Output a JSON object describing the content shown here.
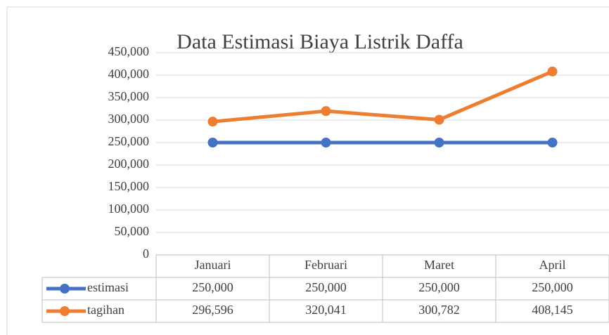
{
  "chart_data": {
    "type": "line",
    "title": "Data Estimasi Biaya Listrik Daffa",
    "categories": [
      "Januari",
      "Februari",
      "Maret",
      "April"
    ],
    "series": [
      {
        "name": "estimasi",
        "color": "#4472c4",
        "values": [
          250000,
          250000,
          250000,
          250000
        ],
        "value_labels": [
          "250,000",
          "250,000",
          "250,000",
          "250,000"
        ]
      },
      {
        "name": "tagihan",
        "color": "#ed7d31",
        "values": [
          296596,
          320041,
          300782,
          408145
        ],
        "value_labels": [
          "296,596",
          "320,041",
          "300,782",
          "408,145"
        ]
      }
    ],
    "ylim": [
      0,
      450000
    ],
    "yticks": [
      0,
      {
        "value": 50000,
        "label": "50,000"
      },
      {
        "value": 100000,
        "label": "100,000"
      },
      {
        "value": 150000,
        "label": "150,000"
      },
      {
        "value": 200000,
        "label": "200,000"
      },
      {
        "value": 250000,
        "label": "250,000"
      },
      {
        "value": 300000,
        "label": "300,000"
      },
      {
        "value": 350000,
        "label": "350,000"
      },
      {
        "value": 400000,
        "label": "400,000"
      },
      {
        "value": 450000,
        "label": "450,000"
      }
    ],
    "grid": true
  }
}
